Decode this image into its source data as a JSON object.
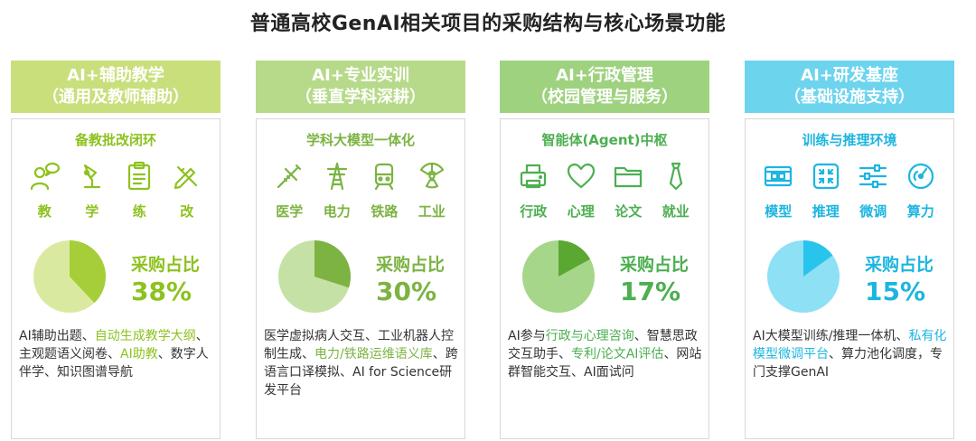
{
  "title": "普通高校GenAI相关项目的采购结构与核心场景功能",
  "ratio_label": "采购占比",
  "columns": [
    {
      "header_line1": "AI+辅助教学",
      "header_line2": "（通用及教师辅助）",
      "header_color": "#C9DF7C",
      "accent": "#8DC21F",
      "pie_color": "#A6CE39",
      "pie_light": "#D9EAA0",
      "card_title": "备教批改闭环",
      "icons": [
        {
          "label": "教",
          "icon": "teacher-icon"
        },
        {
          "label": "学",
          "icon": "lamp-icon"
        },
        {
          "label": "练",
          "icon": "clipboard-icon"
        },
        {
          "label": "改",
          "icon": "pencil-ruler-icon"
        }
      ],
      "ratio_value": "38%",
      "ratio": 0.38,
      "desc_parts": [
        {
          "text": "AI辅助出题、",
          "hl": false
        },
        {
          "text": "自动生成教学大纲",
          "hl": true
        },
        {
          "text": "、主观题语义阅卷、",
          "hl": false
        },
        {
          "text": "AI助教",
          "hl": true
        },
        {
          "text": "、数字人伴学、知识图谱导航",
          "hl": false
        }
      ]
    },
    {
      "header_line1": "AI+专业实训",
      "header_line2": "（垂直学科深耕）",
      "header_color": "#B7DA8A",
      "accent": "#7CB342",
      "pie_color": "#7CB342",
      "pie_light": "#C5E1A5",
      "card_title": "学科大模型一体化",
      "icons": [
        {
          "label": "医学",
          "icon": "syringe-icon"
        },
        {
          "label": "电力",
          "icon": "power-tower-icon"
        },
        {
          "label": "铁路",
          "icon": "train-icon"
        },
        {
          "label": "工业",
          "icon": "radiation-icon"
        }
      ],
      "ratio_value": "30%",
      "ratio": 0.3,
      "desc_parts": [
        {
          "text": "医学虚拟病人交互、工业机器人控制生成、",
          "hl": false
        },
        {
          "text": "电力/铁路运维语义库",
          "hl": true
        },
        {
          "text": "、跨语言口译模拟、AI for Science研发平台",
          "hl": false
        }
      ]
    },
    {
      "header_line1": "AI+行政管理",
      "header_line2": "（校园管理与服务）",
      "header_color": "#9ED27F",
      "accent": "#4CAF50",
      "pie_color": "#5AA832",
      "pie_light": "#A5D68A",
      "card_title": "智能体(Agent)中枢",
      "icons": [
        {
          "label": "行政",
          "icon": "printer-icon"
        },
        {
          "label": "心理",
          "icon": "heart-icon"
        },
        {
          "label": "论文",
          "icon": "folder-icon"
        },
        {
          "label": "就业",
          "icon": "tie-icon"
        }
      ],
      "ratio_value": "17%",
      "ratio": 0.17,
      "desc_parts": [
        {
          "text": "AI参与",
          "hl": false
        },
        {
          "text": "行政与心理咨询",
          "hl": true
        },
        {
          "text": "、智慧思政交互助手、",
          "hl": false
        },
        {
          "text": "专利/论文AI评估",
          "hl": true
        },
        {
          "text": "、网站群智能交互、AI面试问",
          "hl": false
        }
      ]
    },
    {
      "header_line1": "AI+研发基座",
      "header_line2": "（基础设施支持）",
      "header_color": "#6DD4EE",
      "accent": "#1CB5E0",
      "pie_color": "#29C4EC",
      "pie_light": "#8EE0F5",
      "card_title": "训练与推理环境",
      "icons": [
        {
          "label": "模型",
          "icon": "film-icon"
        },
        {
          "label": "推理",
          "icon": "compress-icon"
        },
        {
          "label": "微调",
          "icon": "sliders-icon"
        },
        {
          "label": "算力",
          "icon": "gauge-icon"
        }
      ],
      "ratio_value": "15%",
      "ratio": 0.15,
      "desc_parts": [
        {
          "text": "AI大模型训练/推理一体机、",
          "hl": false
        },
        {
          "text": "私有化模型微调平台",
          "hl": true
        },
        {
          "text": "、算力池化调度，专门支撑GenAI",
          "hl": false
        }
      ]
    }
  ]
}
